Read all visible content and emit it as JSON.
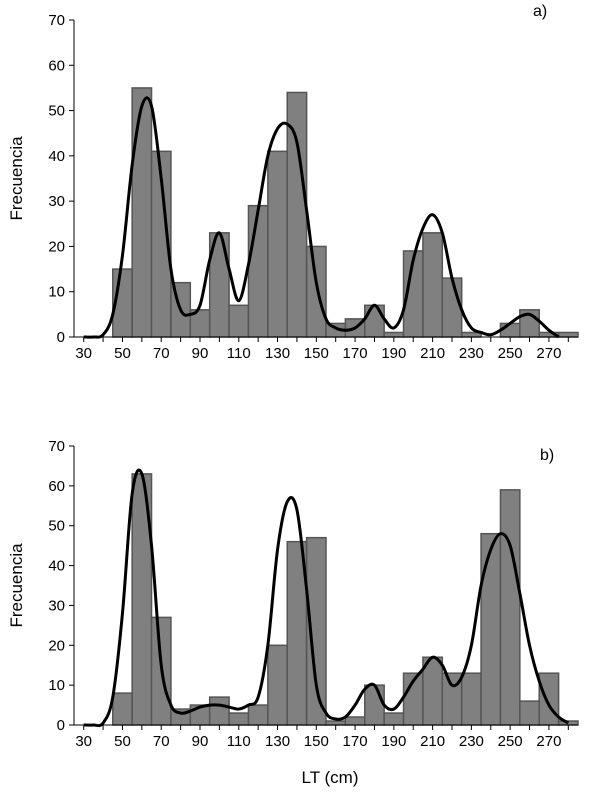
{
  "chart_data": [
    {
      "type": "bar",
      "panel_label": "a)",
      "ylabel": "Frecuencia",
      "xlabel": "",
      "ylim": [
        0,
        70
      ],
      "yticks": [
        0,
        10,
        20,
        30,
        40,
        50,
        60,
        70
      ],
      "xticks": [
        "30",
        "50",
        "70",
        "90",
        "110",
        "130",
        "150",
        "170",
        "190",
        "210",
        "230",
        "250",
        "270"
      ],
      "bins": [
        40,
        50,
        60,
        70,
        80,
        90,
        100,
        110,
        120,
        130,
        140,
        150,
        160,
        170,
        180,
        190,
        200,
        210,
        220,
        230,
        240,
        250,
        260,
        270,
        280
      ],
      "values": [
        0,
        15,
        55,
        41,
        12,
        6,
        23,
        7,
        29,
        41,
        54,
        20,
        3,
        4,
        7,
        1,
        19,
        23,
        13,
        1,
        0,
        3,
        6,
        1,
        1
      ],
      "bar_color": "#808080",
      "curve": {
        "x": [
          30,
          35,
          40,
          45,
          50,
          55,
          60,
          65,
          70,
          75,
          80,
          85,
          90,
          95,
          100,
          105,
          110,
          115,
          120,
          125,
          130,
          135,
          140,
          145,
          150,
          155,
          160,
          165,
          170,
          175,
          180,
          185,
          190,
          195,
          200,
          205,
          210,
          215,
          220,
          225,
          230,
          235,
          240,
          245,
          250,
          255,
          260,
          265,
          270,
          275
        ],
        "y": [
          0,
          0,
          0.5,
          5,
          18,
          38,
          51,
          51,
          35,
          15,
          6,
          5,
          7,
          17,
          23,
          15,
          8,
          16,
          28,
          40,
          46,
          47,
          43,
          28,
          12,
          4,
          2,
          1.5,
          2,
          4,
          7,
          4,
          2,
          6,
          17,
          24,
          27,
          23,
          13,
          6,
          2,
          1,
          0.5,
          1.5,
          3,
          4.5,
          5,
          3.5,
          1.5,
          0
        ]
      },
      "grid": false,
      "legend": "none"
    },
    {
      "type": "bar",
      "panel_label": "b)",
      "ylabel": "Frecuencia",
      "xlabel": "LT (cm)",
      "ylim": [
        0,
        70
      ],
      "yticks": [
        0,
        10,
        20,
        30,
        40,
        50,
        60,
        70
      ],
      "xticks": [
        "30",
        "50",
        "70",
        "90",
        "110",
        "130",
        "150",
        "170",
        "190",
        "210",
        "230",
        "250",
        "270"
      ],
      "bins": [
        40,
        50,
        60,
        70,
        80,
        90,
        100,
        110,
        120,
        130,
        140,
        150,
        160,
        170,
        180,
        190,
        200,
        210,
        220,
        230,
        240,
        250,
        260,
        270,
        280
      ],
      "values": [
        0,
        8,
        63,
        27,
        4,
        5,
        7,
        3,
        5,
        20,
        46,
        47,
        1,
        2,
        10,
        3,
        13,
        17,
        13,
        13,
        48,
        59,
        6,
        13,
        1
      ],
      "bar_color": "#808080",
      "curve": {
        "x": [
          30,
          35,
          40,
          45,
          50,
          55,
          60,
          65,
          70,
          75,
          80,
          85,
          90,
          95,
          100,
          105,
          110,
          115,
          120,
          125,
          130,
          135,
          140,
          145,
          150,
          155,
          160,
          165,
          170,
          175,
          180,
          185,
          190,
          195,
          200,
          205,
          210,
          215,
          220,
          225,
          230,
          235,
          240,
          245,
          250,
          255,
          260,
          265,
          270,
          275,
          280
        ],
        "y": [
          0,
          0,
          0.5,
          7,
          28,
          58,
          63,
          45,
          15,
          5,
          3,
          3.5,
          4.5,
          5,
          5,
          4.5,
          4,
          5,
          7,
          20,
          44,
          56,
          54,
          34,
          10,
          3,
          1.5,
          2,
          5,
          9,
          10,
          5,
          4,
          7,
          11,
          14,
          17,
          15,
          10,
          12,
          20,
          35,
          44,
          48,
          45,
          33,
          20,
          11,
          5,
          2,
          0.5
        ]
      },
      "grid": false,
      "legend": "none"
    }
  ]
}
